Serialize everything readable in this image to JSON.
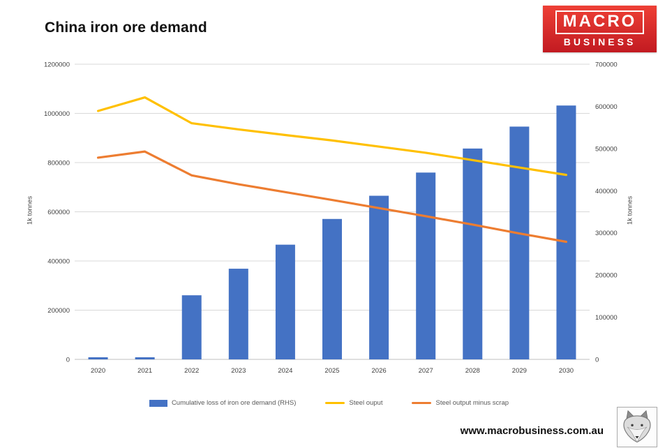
{
  "page": {
    "title": "China iron ore demand",
    "website": "www.macrobusiness.com.au"
  },
  "logo": {
    "line1": "MACRO",
    "line2": "BUSINESS",
    "bg_top": "#ee4036",
    "bg_bottom": "#c21a21"
  },
  "chart_data": {
    "type": "bar",
    "title": "China iron ore demand",
    "categories": [
      "2020",
      "2021",
      "2022",
      "2023",
      "2024",
      "2025",
      "2026",
      "2027",
      "2028",
      "2029",
      "2030"
    ],
    "series": [
      {
        "name": "Cumulative loss of iron ore demand (RHS)",
        "type": "bar",
        "axis": "right",
        "color": "#4472c4",
        "values": [
          5000,
          5000,
          152000,
          215000,
          272000,
          333000,
          388000,
          443000,
          500000,
          552000,
          602000
        ]
      },
      {
        "name": "Steel ouput",
        "type": "line",
        "axis": "left",
        "color": "#ffc000",
        "values": [
          1010000,
          1065000,
          960000,
          935000,
          912000,
          890000,
          865000,
          840000,
          810000,
          780000,
          750000
        ]
      },
      {
        "name": "Steel output minus scrap",
        "type": "line",
        "axis": "left",
        "color": "#ed7d31",
        "values": [
          820000,
          845000,
          748000,
          712000,
          680000,
          648000,
          615000,
          582000,
          548000,
          512000,
          478000
        ]
      }
    ],
    "left_axis": {
      "label": "1k tonnes",
      "min": 0,
      "max": 1200000,
      "step": 200000,
      "ticks": [
        "0",
        "200000",
        "400000",
        "600000",
        "800000",
        "1000000",
        "1200000"
      ]
    },
    "right_axis": {
      "label": "1k tonnes",
      "min": 0,
      "max": 700000,
      "step": 100000,
      "ticks": [
        "0",
        "100000",
        "200000",
        "300000",
        "400000",
        "500000",
        "600000",
        "700000"
      ]
    },
    "grid": true,
    "legend_position": "bottom"
  }
}
